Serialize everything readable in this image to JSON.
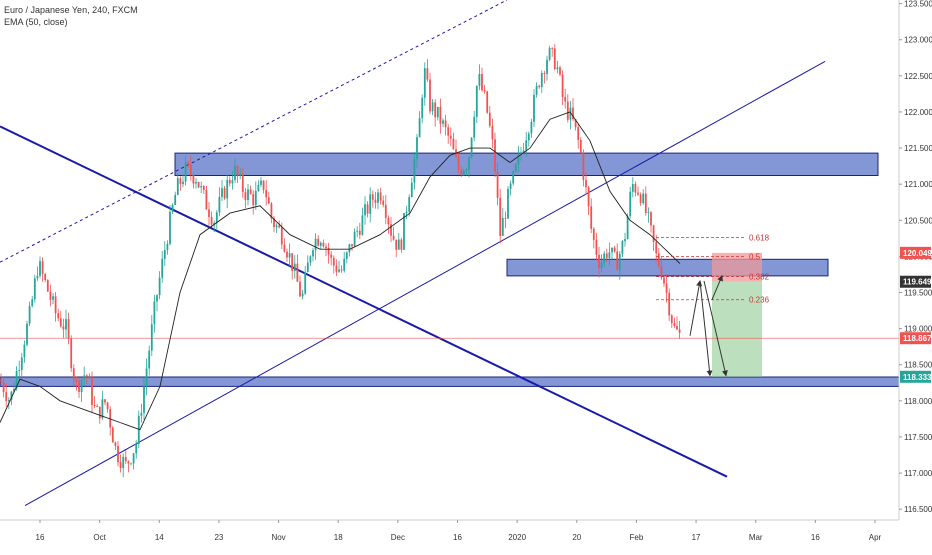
{
  "legend": {
    "symbol_line": "Euro / Japanese Yen, 240, FXCM",
    "indicator_line": "EMA (50, close)"
  },
  "colors": {
    "up": "#26a69a",
    "down": "#ef5350",
    "ema": "#222222",
    "trendline": "#1a1aa8",
    "zone_fill": "#4f6bc4",
    "profit_zone": "#a5d6a7",
    "loss_zone": "#ef9a9a",
    "fib": "#cc3333",
    "price_badge_red": "#ef5350",
    "price_badge_dark": "#333333",
    "price_badge_green": "#26a69a"
  },
  "chart_data": {
    "type": "candlestick",
    "title": "Euro / Japanese Yen, 240, FXCM",
    "ylim": [
      116.35,
      123.55
    ],
    "y_ticks": [
      "116.500",
      "117.000",
      "117.500",
      "118.000",
      "118.500",
      "119.000",
      "119.500",
      "120.000",
      "120.500",
      "121.000",
      "121.500",
      "122.000",
      "122.500",
      "123.000",
      "123.500"
    ],
    "x_ticks": [
      "16",
      "Oct",
      "14",
      "23",
      "Nov",
      "18",
      "Dec",
      "16",
      "2020",
      "20",
      "Feb",
      "17",
      "Mar",
      "16",
      "Apr"
    ],
    "price_path": [
      [
        0,
        118.3
      ],
      [
        10,
        118.0
      ],
      [
        20,
        118.6
      ],
      [
        30,
        119.2
      ],
      [
        38,
        119.9
      ],
      [
        46,
        119.6
      ],
      [
        56,
        119.2
      ],
      [
        66,
        119.0
      ],
      [
        76,
        118.2
      ],
      [
        86,
        118.4
      ],
      [
        96,
        117.8
      ],
      [
        106,
        118.0
      ],
      [
        116,
        117.3
      ],
      [
        126,
        117.1
      ],
      [
        136,
        117.4
      ],
      [
        146,
        118.4
      ],
      [
        156,
        119.4
      ],
      [
        166,
        120.2
      ],
      [
        176,
        120.9
      ],
      [
        186,
        121.2
      ],
      [
        196,
        121.1
      ],
      [
        204,
        120.8
      ],
      [
        214,
        120.5
      ],
      [
        224,
        120.9
      ],
      [
        234,
        121.2
      ],
      [
        244,
        120.9
      ],
      [
        254,
        120.8
      ],
      [
        264,
        121.0
      ],
      [
        272,
        120.5
      ],
      [
        282,
        120.3
      ],
      [
        292,
        119.9
      ],
      [
        302,
        119.4
      ],
      [
        312,
        120.2
      ],
      [
        322,
        120.3
      ],
      [
        332,
        119.9
      ],
      [
        342,
        119.8
      ],
      [
        352,
        120.2
      ],
      [
        362,
        120.5
      ],
      [
        372,
        120.8
      ],
      [
        382,
        120.9
      ],
      [
        392,
        120.3
      ],
      [
        400,
        120.1
      ],
      [
        410,
        121.0
      ],
      [
        418,
        121.6
      ],
      [
        424,
        122.6
      ],
      [
        430,
        122.1
      ],
      [
        440,
        121.9
      ],
      [
        450,
        121.6
      ],
      [
        458,
        121.2
      ],
      [
        468,
        121.3
      ],
      [
        478,
        122.5
      ],
      [
        486,
        122.1
      ],
      [
        494,
        121.4
      ],
      [
        500,
        120.3
      ],
      [
        508,
        120.8
      ],
      [
        516,
        121.2
      ],
      [
        524,
        121.6
      ],
      [
        532,
        122.0
      ],
      [
        540,
        122.5
      ],
      [
        548,
        122.8
      ],
      [
        556,
        122.7
      ],
      [
        564,
        122.1
      ],
      [
        572,
        121.9
      ],
      [
        580,
        121.5
      ],
      [
        586,
        120.9
      ],
      [
        592,
        120.3
      ],
      [
        600,
        119.9
      ],
      [
        608,
        120.1
      ],
      [
        616,
        119.9
      ],
      [
        624,
        120.2
      ],
      [
        632,
        121.0
      ],
      [
        640,
        120.9
      ],
      [
        648,
        120.5
      ],
      [
        656,
        120.0
      ],
      [
        662,
        119.8
      ],
      [
        668,
        119.4
      ],
      [
        674,
        119.0
      ],
      [
        680,
        118.9
      ]
    ],
    "ema_path": [
      [
        0,
        117.7
      ],
      [
        20,
        118.3
      ],
      [
        40,
        118.2
      ],
      [
        60,
        118.0
      ],
      [
        80,
        117.9
      ],
      [
        100,
        117.8
      ],
      [
        120,
        117.7
      ],
      [
        140,
        117.6
      ],
      [
        160,
        118.2
      ],
      [
        180,
        119.5
      ],
      [
        200,
        120.3
      ],
      [
        230,
        120.6
      ],
      [
        260,
        120.7
      ],
      [
        290,
        120.3
      ],
      [
        320,
        120.1
      ],
      [
        350,
        120.1
      ],
      [
        380,
        120.3
      ],
      [
        410,
        120.6
      ],
      [
        430,
        121.1
      ],
      [
        450,
        121.4
      ],
      [
        470,
        121.5
      ],
      [
        490,
        121.5
      ],
      [
        510,
        121.3
      ],
      [
        530,
        121.5
      ],
      [
        550,
        121.9
      ],
      [
        570,
        122.0
      ],
      [
        590,
        121.6
      ],
      [
        610,
        120.9
      ],
      [
        630,
        120.5
      ],
      [
        650,
        120.3
      ],
      [
        680,
        119.9
      ]
    ],
    "zones": [
      {
        "label": "resistance-zone",
        "x": [
          175,
          878
        ],
        "y": [
          121.12,
          121.43
        ]
      },
      {
        "label": "mid-zone",
        "x": [
          507,
          828
        ],
        "y": [
          119.73,
          119.96
        ]
      },
      {
        "label": "support-zone",
        "x": [
          0,
          899
        ],
        "y": [
          118.2,
          118.33
        ]
      }
    ],
    "trendlines": [
      {
        "from": [
          0,
          121.8
        ],
        "to": [
          727,
          116.95
        ],
        "dashed": false,
        "width": 2
      },
      {
        "from": [
          25,
          116.55
        ],
        "to": [
          825,
          122.7
        ],
        "dashed": false,
        "width": 1
      },
      {
        "from": [
          0,
          119.92
        ],
        "to": [
          507,
          123.55
        ],
        "dashed": true,
        "width": 1
      }
    ],
    "fib_levels": [
      {
        "label": "0.618",
        "value": 120.26,
        "x": [
          656,
          745
        ]
      },
      {
        "label": "0.5",
        "value": 120.0,
        "x": [
          656,
          745
        ]
      },
      {
        "label": "0.382",
        "value": 119.72,
        "x": [
          656,
          745
        ]
      },
      {
        "label": "0.236",
        "value": 119.4,
        "x": [
          656,
          745
        ]
      }
    ],
    "position": {
      "entry": 119.649,
      "stop": 120.049,
      "target": 118.333,
      "x": [
        712,
        762
      ]
    },
    "arrows": [
      {
        "from": [
          690,
          118.9
        ],
        "to": [
          700,
          119.66
        ]
      },
      {
        "from": [
          700,
          119.66
        ],
        "to": [
          710,
          118.35
        ]
      },
      {
        "from": [
          712,
          119.4
        ],
        "to": [
          722,
          119.73
        ]
      },
      {
        "from": [
          704,
          119.66
        ],
        "to": [
          726,
          118.35
        ]
      }
    ],
    "current_price_line": 118.867,
    "price_badges": [
      {
        "value": "120.049",
        "level": 120.049,
        "style": "red"
      },
      {
        "value": "119.649",
        "level": 119.649,
        "style": "dark"
      },
      {
        "value": "118.867",
        "level": 118.867,
        "style": "red"
      },
      {
        "value": "118.333",
        "level": 118.333,
        "style": "green"
      }
    ]
  }
}
